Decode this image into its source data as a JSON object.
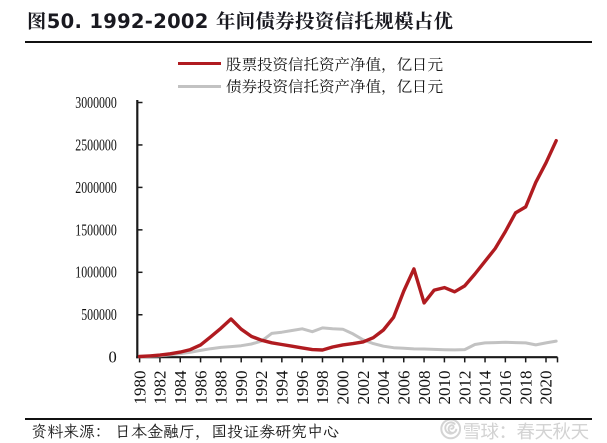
{
  "figure": {
    "title": "图50. 1992-2002 年间债券投资信托规模占优",
    "source_note": "资料来源： 日本金融厅，国投证券研究中心",
    "watermark": {
      "logo": "xueqiu-snowball-logo",
      "text": "雪球：春天秋天"
    }
  },
  "legend": {
    "items": [
      {
        "label": "股票投资信托资产净值，亿日元",
        "color": "#b01b20"
      },
      {
        "label": "债券投资信托资产净值，亿日元",
        "color": "#c2c2c2"
      }
    ]
  },
  "chart_data": {
    "type": "line",
    "title": "图50. 1992-2002 年间债券投资信托规模占优",
    "x": [
      1980,
      1981,
      1982,
      1983,
      1984,
      1985,
      1986,
      1987,
      1988,
      1989,
      1990,
      1991,
      1992,
      1993,
      1994,
      1995,
      1996,
      1997,
      1998,
      1999,
      2000,
      2001,
      2002,
      2003,
      2004,
      2005,
      2006,
      2007,
      2008,
      2009,
      2010,
      2011,
      2012,
      2013,
      2014,
      2015,
      2016,
      2017,
      2018,
      2019,
      2020,
      2021
    ],
    "series": [
      {
        "name": "股票投资信托资产净值，亿日元",
        "color": "#b01b20",
        "values": [
          8000,
          15000,
          25000,
          40000,
          60000,
          90000,
          145000,
          240000,
          340000,
          450000,
          330000,
          245000,
          200000,
          170000,
          150000,
          130000,
          110000,
          90000,
          85000,
          120000,
          145000,
          160000,
          180000,
          230000,
          320000,
          470000,
          780000,
          1040000,
          640000,
          790000,
          820000,
          770000,
          840000,
          980000,
          1130000,
          1280000,
          1480000,
          1700000,
          1770000,
          2060000,
          2290000,
          2550000
        ]
      },
      {
        "name": "债券投资信托资产净值，亿日元",
        "color": "#c2c2c2",
        "values": [
          5000,
          10000,
          18000,
          28000,
          42000,
          58000,
          80000,
          100000,
          115000,
          125000,
          135000,
          155000,
          190000,
          280000,
          295000,
          315000,
          335000,
          300000,
          345000,
          335000,
          330000,
          275000,
          205000,
          160000,
          130000,
          112000,
          105000,
          98000,
          96000,
          92000,
          88000,
          86000,
          90000,
          150000,
          168000,
          172000,
          176000,
          172000,
          168000,
          145000,
          168000,
          190000
        ]
      }
    ],
    "xlabel": "",
    "ylabel": "",
    "ylim": [
      0,
      3000000
    ],
    "y_ticks": [
      0,
      500000,
      1000000,
      1500000,
      2000000,
      2500000,
      3000000
    ],
    "x_tick_labels": [
      "1980",
      "1982",
      "1984",
      "1986",
      "1988",
      "1990",
      "1992",
      "1994",
      "1996",
      "1998",
      "2000",
      "2002",
      "2004",
      "2006",
      "2008",
      "2010",
      "2012",
      "2014",
      "2016",
      "2018",
      "2020"
    ],
    "grid": false,
    "legend_position": "top"
  }
}
